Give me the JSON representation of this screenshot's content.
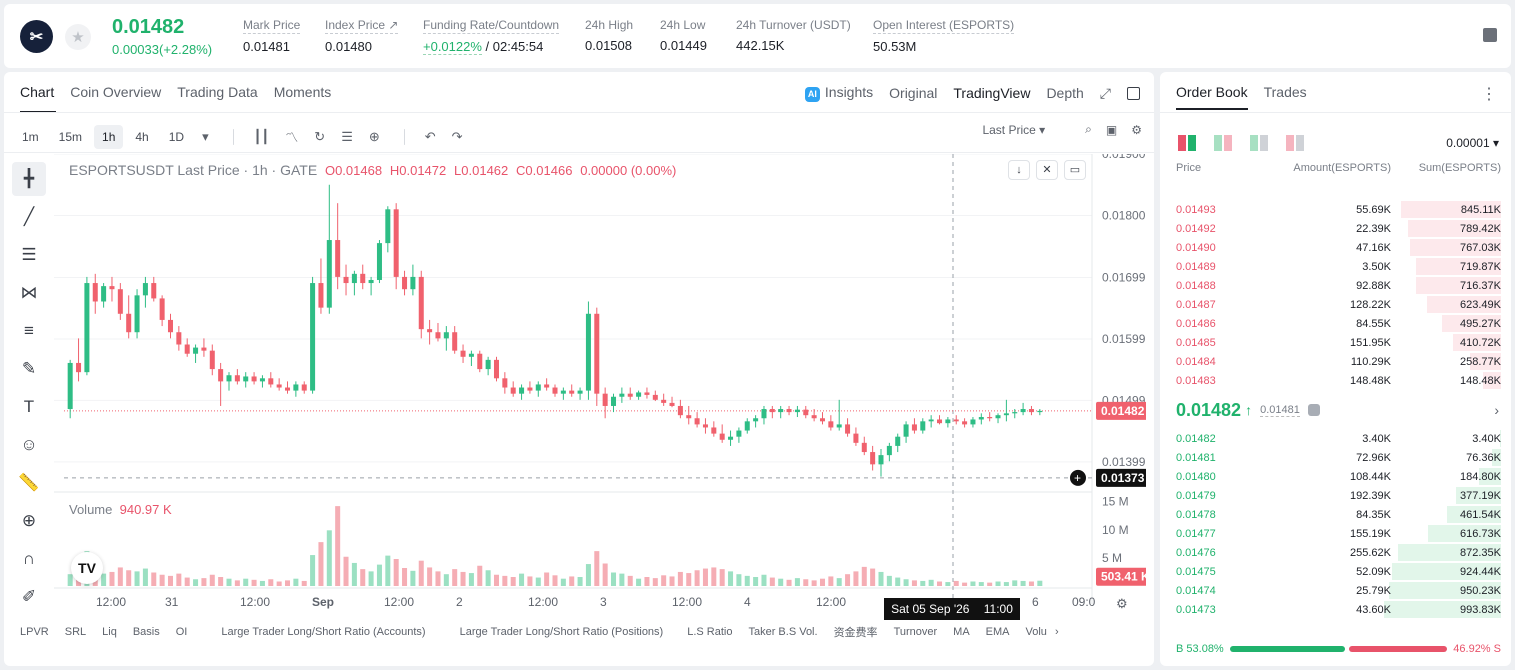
{
  "header": {
    "logo_glyph": "✂",
    "price": "0.01482",
    "change": "0.00033(+2.28%)",
    "stats": [
      {
        "label": "Mark Price",
        "value": "0.01481"
      },
      {
        "label": "Index Price ↗",
        "value": "0.01480"
      },
      {
        "label": "Funding Rate/Countdown",
        "value_green": "+0.0122%",
        "value": " / 02:45:54"
      },
      {
        "label": "24h High",
        "value": "0.01508"
      },
      {
        "label": "24h Low",
        "value": "0.01449"
      },
      {
        "label": "24h Turnover (USDT)",
        "value": "442.15K"
      },
      {
        "label": "Open Interest (ESPORTS)",
        "value": "50.53M"
      }
    ]
  },
  "chart_panel": {
    "tabs": [
      "Chart",
      "Coin Overview",
      "Trading Data",
      "Moments"
    ],
    "right_tabs": {
      "ai": "AI",
      "insights": "Insights",
      "original": "Original",
      "tradingview": "TradingView",
      "depth": "Depth"
    },
    "intervals": [
      "1m",
      "15m",
      "1h",
      "4h",
      "1D"
    ],
    "selected_interval": "1h",
    "price_type": "Last Price",
    "legend": {
      "title": "ESPORTSUSDT Last Price · 1h · GATE",
      "o": "O0.01468",
      "h": "H0.01472",
      "l": "L0.01462",
      "c": "C0.01466",
      "chg": "0.00000 (0.00%)"
    },
    "volume_legend": {
      "label": "Volume",
      "value": "940.97 K"
    },
    "price_ticks": [
      "0.01900",
      "0.01800",
      "0.01699",
      "0.01599",
      "0.01499",
      "0.01399"
    ],
    "volume_ticks": [
      "15 M",
      "10 M",
      "5 M"
    ],
    "time_ticks": [
      "12:00",
      "31",
      "12:00",
      "Sep",
      "12:00",
      "2",
      "12:00",
      "3",
      "12:00",
      "4",
      "12:00",
      "6",
      "09:0"
    ],
    "last_price_label": "0.01482",
    "crosshair_label": "0.01373",
    "volume_label": "503.41 K",
    "crosshair_date": "Sat 05 Sep '26",
    "crosshair_time": "11:00",
    "tv_logo": "TV",
    "indicators": [
      "LPVR",
      "SRL",
      "Liq",
      "Basis",
      "OI",
      "Large Trader Long/Short Ratio (Accounts)",
      "Large Trader Long/Short Ratio (Positions)",
      "L.S Ratio",
      "Taker B.S Vol.",
      "资金费率",
      "Turnover",
      "MA",
      "EMA",
      "Volu"
    ],
    "colors": {
      "up": "#2ebd85",
      "down": "#f0616d",
      "grid": "#f2f3f5"
    }
  },
  "chart_data": {
    "type": "candlestick",
    "price_ylim": [
      0.0135,
      0.019
    ],
    "candles": [
      [
        0.01485,
        0.01565,
        0.0147,
        0.0156
      ],
      [
        0.0156,
        0.016,
        0.0153,
        0.01545
      ],
      [
        0.01545,
        0.017,
        0.0154,
        0.0169
      ],
      [
        0.0169,
        0.01705,
        0.0164,
        0.0166
      ],
      [
        0.0166,
        0.0169,
        0.0165,
        0.01685
      ],
      [
        0.01685,
        0.017,
        0.0166,
        0.0168
      ],
      [
        0.0168,
        0.0169,
        0.0163,
        0.0164
      ],
      [
        0.0164,
        0.0167,
        0.016,
        0.0161
      ],
      [
        0.0161,
        0.0168,
        0.016,
        0.0167
      ],
      [
        0.0167,
        0.017,
        0.0165,
        0.0169
      ],
      [
        0.0169,
        0.017,
        0.0166,
        0.01665
      ],
      [
        0.01665,
        0.0167,
        0.0162,
        0.0163
      ],
      [
        0.0163,
        0.0164,
        0.016,
        0.0161
      ],
      [
        0.0161,
        0.0162,
        0.0158,
        0.0159
      ],
      [
        0.0159,
        0.016,
        0.0157,
        0.01575
      ],
      [
        0.01575,
        0.0159,
        0.0156,
        0.01585
      ],
      [
        0.01585,
        0.016,
        0.0157,
        0.0158
      ],
      [
        0.0158,
        0.0159,
        0.0154,
        0.0155
      ],
      [
        0.0155,
        0.0156,
        0.0149,
        0.0153
      ],
      [
        0.0153,
        0.01545,
        0.01515,
        0.0154
      ],
      [
        0.0154,
        0.0155,
        0.01525,
        0.0153
      ],
      [
        0.0153,
        0.01545,
        0.0152,
        0.01538
      ],
      [
        0.01538,
        0.01545,
        0.01525,
        0.0153
      ],
      [
        0.0153,
        0.0154,
        0.0152,
        0.01535
      ],
      [
        0.01535,
        0.01545,
        0.0152,
        0.01525
      ],
      [
        0.01525,
        0.01535,
        0.01515,
        0.0152
      ],
      [
        0.0152,
        0.0153,
        0.0151,
        0.01515
      ],
      [
        0.01515,
        0.0153,
        0.01505,
        0.01525
      ],
      [
        0.01525,
        0.0153,
        0.0151,
        0.01515
      ],
      [
        0.01515,
        0.017,
        0.0151,
        0.0169
      ],
      [
        0.0169,
        0.0173,
        0.0164,
        0.0165
      ],
      [
        0.0165,
        0.0185,
        0.0164,
        0.0176
      ],
      [
        0.0176,
        0.0182,
        0.0168,
        0.017
      ],
      [
        0.017,
        0.0172,
        0.0167,
        0.0169
      ],
      [
        0.0169,
        0.0171,
        0.0167,
        0.01705
      ],
      [
        0.01705,
        0.0172,
        0.0168,
        0.0169
      ],
      [
        0.0169,
        0.017,
        0.0167,
        0.01695
      ],
      [
        0.01695,
        0.0176,
        0.0169,
        0.01755
      ],
      [
        0.01755,
        0.01815,
        0.0174,
        0.0181
      ],
      [
        0.0181,
        0.0182,
        0.0168,
        0.017
      ],
      [
        0.017,
        0.0171,
        0.0167,
        0.0168
      ],
      [
        0.0168,
        0.0172,
        0.0167,
        0.017
      ],
      [
        0.017,
        0.0171,
        0.016,
        0.01615
      ],
      [
        0.01615,
        0.0163,
        0.0159,
        0.0161
      ],
      [
        0.0161,
        0.01625,
        0.01595,
        0.016
      ],
      [
        0.016,
        0.0162,
        0.0158,
        0.0161
      ],
      [
        0.0161,
        0.0162,
        0.01575,
        0.0158
      ],
      [
        0.0158,
        0.0159,
        0.0156,
        0.0157
      ],
      [
        0.0157,
        0.0158,
        0.01555,
        0.01575
      ],
      [
        0.01575,
        0.0158,
        0.01545,
        0.0155
      ],
      [
        0.0155,
        0.0157,
        0.0154,
        0.01565
      ],
      [
        0.01565,
        0.0157,
        0.0153,
        0.01535
      ],
      [
        0.01535,
        0.01545,
        0.0151,
        0.0152
      ],
      [
        0.0152,
        0.0153,
        0.01505,
        0.0151
      ],
      [
        0.0151,
        0.01525,
        0.015,
        0.0152
      ],
      [
        0.0152,
        0.0153,
        0.0151,
        0.01515
      ],
      [
        0.01515,
        0.0153,
        0.01505,
        0.01525
      ],
      [
        0.01525,
        0.01535,
        0.01515,
        0.0152
      ],
      [
        0.0152,
        0.01525,
        0.01505,
        0.0151
      ],
      [
        0.0151,
        0.0152,
        0.015,
        0.01515
      ],
      [
        0.01515,
        0.01525,
        0.01505,
        0.0151
      ],
      [
        0.0151,
        0.0152,
        0.015,
        0.01515
      ],
      [
        0.01515,
        0.0166,
        0.015,
        0.0164
      ],
      [
        0.0164,
        0.0165,
        0.0149,
        0.0151
      ],
      [
        0.0151,
        0.0152,
        0.0147,
        0.0149
      ],
      [
        0.0149,
        0.0151,
        0.0148,
        0.01505
      ],
      [
        0.01505,
        0.0152,
        0.01495,
        0.0151
      ],
      [
        0.0151,
        0.0152,
        0.015,
        0.01505
      ],
      [
        0.01505,
        0.01515,
        0.015,
        0.01512
      ],
      [
        0.01512,
        0.0152,
        0.01502,
        0.01508
      ],
      [
        0.01508,
        0.01515,
        0.01498,
        0.015
      ],
      [
        0.015,
        0.0151,
        0.0149,
        0.01495
      ],
      [
        0.01495,
        0.01505,
        0.01488,
        0.0149
      ],
      [
        0.0149,
        0.015,
        0.0147,
        0.01475
      ],
      [
        0.01475,
        0.0149,
        0.0146,
        0.0147
      ],
      [
        0.0147,
        0.0148,
        0.01455,
        0.0146
      ],
      [
        0.0146,
        0.0147,
        0.01445,
        0.01455
      ],
      [
        0.01455,
        0.01465,
        0.0144,
        0.01445
      ],
      [
        0.01445,
        0.0146,
        0.0143,
        0.01435
      ],
      [
        0.01435,
        0.0145,
        0.01425,
        0.0144
      ],
      [
        0.0144,
        0.01455,
        0.0143,
        0.0145
      ],
      [
        0.0145,
        0.0147,
        0.01445,
        0.01465
      ],
      [
        0.01465,
        0.01475,
        0.01455,
        0.0147
      ],
      [
        0.0147,
        0.0149,
        0.0146,
        0.01485
      ],
      [
        0.01485,
        0.0149,
        0.0147,
        0.0148
      ],
      [
        0.0148,
        0.0149,
        0.0147,
        0.01485
      ],
      [
        0.01485,
        0.0149,
        0.01475,
        0.0148
      ],
      [
        0.0148,
        0.0149,
        0.01472,
        0.01484
      ],
      [
        0.01484,
        0.0149,
        0.0147,
        0.01475
      ],
      [
        0.01475,
        0.01485,
        0.01465,
        0.0147
      ],
      [
        0.0147,
        0.0148,
        0.0146,
        0.01465
      ],
      [
        0.01465,
        0.01475,
        0.0145,
        0.01455
      ],
      [
        0.01455,
        0.015,
        0.0145,
        0.0146
      ],
      [
        0.0146,
        0.0147,
        0.0144,
        0.01445
      ],
      [
        0.01445,
        0.01455,
        0.01425,
        0.0143
      ],
      [
        0.0143,
        0.0144,
        0.0141,
        0.01415
      ],
      [
        0.01415,
        0.01425,
        0.01385,
        0.01395
      ],
      [
        0.01395,
        0.0142,
        0.01375,
        0.0141
      ],
      [
        0.0141,
        0.0143,
        0.014,
        0.01425
      ],
      [
        0.01425,
        0.01445,
        0.01415,
        0.0144
      ],
      [
        0.0144,
        0.01465,
        0.0143,
        0.0146
      ],
      [
        0.0146,
        0.0147,
        0.01445,
        0.0145
      ],
      [
        0.0145,
        0.0147,
        0.01445,
        0.01465
      ],
      [
        0.01465,
        0.01475,
        0.01455,
        0.01468
      ],
      [
        0.01468,
        0.01475,
        0.0146,
        0.01462
      ],
      [
        0.01462,
        0.01472,
        0.01455,
        0.01468
      ],
      [
        0.01468,
        0.01475,
        0.0146,
        0.01465
      ],
      [
        0.01465,
        0.0147,
        0.01455,
        0.0146
      ],
      [
        0.0146,
        0.01472,
        0.01455,
        0.01468
      ],
      [
        0.01468,
        0.01478,
        0.0146,
        0.01472
      ],
      [
        0.01472,
        0.0148,
        0.01465,
        0.0147
      ],
      [
        0.0147,
        0.01478,
        0.01462,
        0.01475
      ],
      [
        0.01475,
        0.015,
        0.01465,
        0.01478
      ],
      [
        0.01478,
        0.01485,
        0.0147,
        0.0148
      ],
      [
        0.0148,
        0.01495,
        0.01475,
        0.01485
      ],
      [
        0.01485,
        0.0149,
        0.01475,
        0.0148
      ],
      [
        0.0148,
        0.01485,
        0.01475,
        0.01482
      ]
    ],
    "volumes": [
      2.1,
      3.5,
      6.2,
      3.0,
      2.2,
      2.5,
      3.3,
      2.8,
      2.6,
      3.1,
      2.4,
      2.0,
      1.8,
      2.2,
      1.5,
      1.2,
      1.4,
      2.0,
      1.6,
      1.3,
      1.0,
      1.3,
      1.1,
      0.9,
      1.2,
      0.8,
      1.0,
      1.3,
      0.9,
      5.5,
      7.8,
      9.9,
      14.2,
      5.2,
      4.1,
      3.0,
      2.6,
      3.8,
      5.4,
      4.8,
      3.2,
      2.7,
      4.5,
      3.3,
      2.6,
      2.1,
      3.0,
      2.5,
      2.3,
      3.6,
      2.8,
      2.0,
      1.8,
      1.6,
      2.2,
      1.7,
      1.5,
      2.4,
      1.9,
      1.3,
      1.7,
      1.6,
      3.9,
      6.2,
      4.0,
      2.4,
      2.2,
      1.8,
      1.3,
      1.6,
      1.4,
      1.9,
      1.7,
      2.5,
      2.3,
      2.8,
      3.1,
      3.3,
      3.0,
      2.6,
      2.1,
      1.8,
      1.6,
      2.0,
      1.5,
      1.3,
      1.1,
      1.4,
      1.2,
      1.0,
      1.3,
      1.7,
      1.4,
      2.1,
      2.6,
      3.4,
      3.1,
      2.5,
      1.8,
      1.5,
      1.2,
      1.0,
      0.9,
      1.1,
      0.8,
      0.7,
      0.9,
      0.6,
      0.8,
      0.7,
      0.6,
      0.8,
      0.7,
      1.0,
      0.9,
      0.8,
      0.94
    ]
  },
  "order_book": {
    "tabs": [
      "Order Book",
      "Trades"
    ],
    "tick": "0.00001",
    "headers": {
      "price": "Price",
      "amount": "Amount(ESPORTS)",
      "sum": "Sum(ESPORTS)"
    },
    "asks": [
      {
        "price": "0.01493",
        "amount": "55.69K",
        "sum": "845.11K",
        "depth": 0.85
      },
      {
        "price": "0.01492",
        "amount": "22.39K",
        "sum": "789.42K",
        "depth": 0.79
      },
      {
        "price": "0.01490",
        "amount": "47.16K",
        "sum": "767.03K",
        "depth": 0.77
      },
      {
        "price": "0.01489",
        "amount": "3.50K",
        "sum": "719.87K",
        "depth": 0.72
      },
      {
        "price": "0.01488",
        "amount": "92.88K",
        "sum": "716.37K",
        "depth": 0.72
      },
      {
        "price": "0.01487",
        "amount": "128.22K",
        "sum": "623.49K",
        "depth": 0.63
      },
      {
        "price": "0.01486",
        "amount": "84.55K",
        "sum": "495.27K",
        "depth": 0.5
      },
      {
        "price": "0.01485",
        "amount": "151.95K",
        "sum": "410.72K",
        "depth": 0.41
      },
      {
        "price": "0.01484",
        "amount": "110.29K",
        "sum": "258.77K",
        "depth": 0.26
      },
      {
        "price": "0.01483",
        "amount": "148.48K",
        "sum": "148.48K",
        "depth": 0.15
      }
    ],
    "last_price": "0.01482",
    "mark_price": "0.01481",
    "bids": [
      {
        "price": "0.01482",
        "amount": "3.40K",
        "sum": "3.40K",
        "depth": 0.01
      },
      {
        "price": "0.01481",
        "amount": "72.96K",
        "sum": "76.36K",
        "depth": 0.08
      },
      {
        "price": "0.01480",
        "amount": "108.44K",
        "sum": "184.80K",
        "depth": 0.19
      },
      {
        "price": "0.01479",
        "amount": "192.39K",
        "sum": "377.19K",
        "depth": 0.38
      },
      {
        "price": "0.01478",
        "amount": "84.35K",
        "sum": "461.54K",
        "depth": 0.46
      },
      {
        "price": "0.01477",
        "amount": "155.19K",
        "sum": "616.73K",
        "depth": 0.62
      },
      {
        "price": "0.01476",
        "amount": "255.62K",
        "sum": "872.35K",
        "depth": 0.87
      },
      {
        "price": "0.01475",
        "amount": "52.09K",
        "sum": "924.44K",
        "depth": 0.92
      },
      {
        "price": "0.01474",
        "amount": "25.79K",
        "sum": "950.23K",
        "depth": 0.95
      },
      {
        "price": "0.01473",
        "amount": "43.60K",
        "sum": "993.83K",
        "depth": 0.99
      }
    ],
    "buy_label": "B",
    "buy_pct": "53.08%",
    "buy_ratio": 0.5308,
    "sell_label": "S",
    "sell_pct": "46.92%"
  }
}
